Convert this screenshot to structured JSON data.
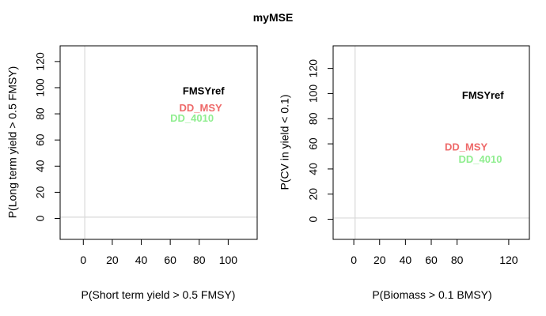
{
  "title": "myMSE",
  "chart_data": [
    {
      "type": "scatter",
      "xlabel": "P(Short term yield > 0.5 FMSY)",
      "ylabel": "P(Long term yield > 0.5 FMSY)",
      "xlim": [
        -16,
        120
      ],
      "ylim": [
        -16,
        132
      ],
      "xticks": [
        0,
        20,
        40,
        60,
        80,
        100
      ],
      "yticks": [
        0,
        20,
        40,
        60,
        80,
        100,
        120
      ],
      "reference_lines": {
        "x": 1,
        "y": 1,
        "color": "#d9d9d9"
      },
      "points": [
        {
          "label": "FMSYref",
          "x": 83,
          "y": 97,
          "color": "#000000"
        },
        {
          "label": "DD_MSY",
          "x": 81,
          "y": 84,
          "color": "#ee6a6a"
        },
        {
          "label": "DD_4010",
          "x": 75,
          "y": 76,
          "color": "#90ee90"
        }
      ]
    },
    {
      "type": "scatter",
      "xlabel": "P(Biomass > 0.1 BMSY)",
      "ylabel": "P(CV in yield < 0.1)",
      "xlim": [
        -16,
        136
      ],
      "ylim": [
        -16,
        138
      ],
      "xticks": [
        0,
        20,
        40,
        60,
        80,
        120
      ],
      "yticks": [
        0,
        20,
        40,
        60,
        80,
        100,
        120
      ],
      "reference_lines": {
        "x": 1,
        "y": 1,
        "color": "#d9d9d9"
      },
      "points": [
        {
          "label": "FMSYref",
          "x": 100,
          "y": 98,
          "color": "#000000"
        },
        {
          "label": "DD_MSY",
          "x": 87,
          "y": 57,
          "color": "#ee6a6a"
        },
        {
          "label": "DD_4010",
          "x": 98,
          "y": 47,
          "color": "#90ee90"
        }
      ]
    }
  ]
}
